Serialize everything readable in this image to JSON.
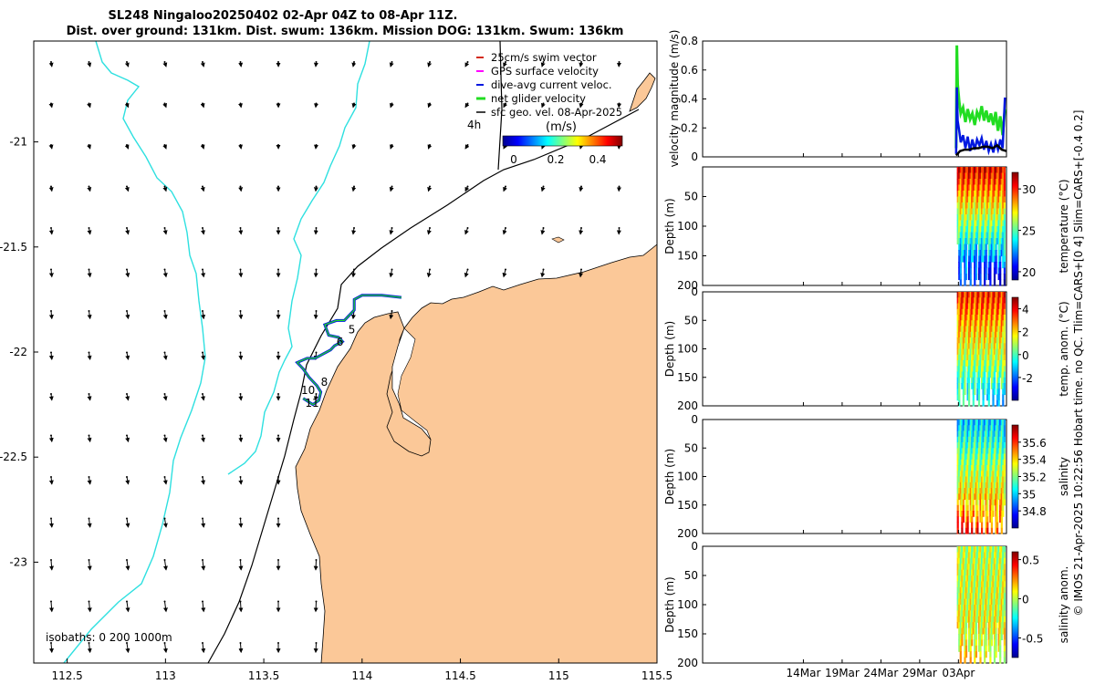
{
  "titles": {
    "line1": "SL248 Ningaloo20250402 02-Apr 04Z to 08-Apr 11Z.",
    "line2": "Dist. over ground: 131km. Dist. swum: 136km. Mission DOG: 131km. Swum: 136km"
  },
  "side_note": "© IMOS 21-Apr-2025 10:22:56 Hobart time. no QC. Tlim=CARS+[0 4] Slim=CARS+[-0.4 0.2]",
  "colors": {
    "land": "#fbc898",
    "drifter_track": "#2ee0e0",
    "coast": "#000000",
    "swim_vector": "#d42a1a",
    "gps_velocity": "#ff00ff",
    "dive_avg": "#0018e0",
    "net_glider": "#22dd22",
    "sfc_geo": "#000000"
  },
  "chart_data": [
    {
      "type": "map",
      "xlim": [
        112.33,
        115.5
      ],
      "ylim": [
        -23.48,
        -20.52
      ],
      "xticks": [
        "112.5",
        "113",
        "113.5",
        "114",
        "114.5",
        "115",
        "115.5"
      ],
      "xtick_values": [
        112.5,
        113,
        113.5,
        114,
        114.5,
        115,
        115.5
      ],
      "yticks": [
        "-21",
        "-21.5",
        "-22",
        "-22.5",
        "-23"
      ],
      "ytick_values": [
        -21,
        -21.5,
        -22,
        -22.5,
        -23
      ],
      "legend": [
        {
          "label": "25cm/s swim vector",
          "color": "#d42a1a"
        },
        {
          "label": "GPS surface velocity",
          "color": "#ff00ff"
        },
        {
          "label": "dive-avg current veloc.",
          "color": "#0018e0"
        },
        {
          "label": "net glider velocity",
          "color": "#22dd22"
        },
        {
          "label": "sfc geo. vel. 08-Apr-2025",
          "color": "#000000"
        }
      ],
      "legend_placement": "top-right",
      "colorbar": {
        "label": "(m/s)",
        "time_label": "4h",
        "ticks": [
          "0",
          "0.2",
          "0.4"
        ],
        "range": [
          0,
          0.5
        ]
      },
      "isobaths_label": "isobaths: 0   200  1000m",
      "day_labels": [
        {
          "text": "5",
          "lon": 113.93,
          "lat": -21.91
        },
        {
          "text": "6",
          "lon": 113.87,
          "lat": -21.97
        },
        {
          "text": "8",
          "lon": 113.79,
          "lat": -22.16
        },
        {
          "text": "10",
          "lon": 113.69,
          "lat": -22.2
        },
        {
          "text": "11",
          "lon": 113.71,
          "lat": -22.26
        }
      ],
      "glider_track": [
        [
          114.2,
          -21.74
        ],
        [
          114.1,
          -21.73
        ],
        [
          114.0,
          -21.73
        ],
        [
          113.96,
          -21.75
        ],
        [
          113.96,
          -21.8
        ],
        [
          113.93,
          -21.83
        ],
        [
          113.91,
          -21.85
        ],
        [
          113.87,
          -21.85
        ],
        [
          113.84,
          -21.86
        ],
        [
          113.81,
          -21.87
        ],
        [
          113.83,
          -21.92
        ],
        [
          113.88,
          -21.93
        ],
        [
          113.9,
          -21.95
        ],
        [
          113.86,
          -21.97
        ],
        [
          113.84,
          -21.99
        ],
        [
          113.8,
          -22.01
        ],
        [
          113.76,
          -22.03
        ],
        [
          113.72,
          -22.03
        ],
        [
          113.67,
          -22.05
        ],
        [
          113.7,
          -22.08
        ],
        [
          113.73,
          -22.12
        ],
        [
          113.77,
          -22.16
        ],
        [
          113.79,
          -22.19
        ],
        [
          113.78,
          -22.23
        ],
        [
          113.75,
          -22.25
        ],
        [
          113.7,
          -22.22
        ]
      ]
    },
    {
      "type": "line",
      "ylabel": "velocity magnitude (m/s)",
      "ylim": [
        0,
        0.8
      ],
      "yticks": [
        "0",
        "0.2",
        "0.4",
        "0.6",
        "0.8"
      ],
      "ytick_values": [
        0,
        0.2,
        0.4,
        0.6,
        0.8
      ],
      "x_dates": [
        "14Mar",
        "19Mar",
        "24Mar",
        "29Mar",
        "03Apr"
      ],
      "x_date_values": [
        13,
        18,
        23,
        28,
        33
      ],
      "xlim": [
        0,
        39.2
      ],
      "series": [
        {
          "color": "#22dd22",
          "x": [
            32.7,
            32.8,
            32.9,
            33.1,
            33.3,
            33.6,
            33.9,
            34.2,
            34.5,
            34.8,
            35.1,
            35.4,
            35.7,
            36.0,
            36.3,
            36.6,
            36.9,
            37.2,
            37.5,
            37.8,
            38.1,
            38.4,
            38.7,
            39.0
          ],
          "y": [
            0.06,
            0.77,
            0.5,
            0.38,
            0.3,
            0.34,
            0.24,
            0.33,
            0.26,
            0.3,
            0.22,
            0.31,
            0.27,
            0.35,
            0.25,
            0.32,
            0.24,
            0.3,
            0.22,
            0.31,
            0.18,
            0.28,
            0.15,
            0.33
          ]
        },
        {
          "color": "#0018e0",
          "x": [
            32.7,
            32.8,
            32.9,
            33.1,
            33.3,
            33.6,
            33.9,
            34.2,
            34.5,
            34.8,
            35.1,
            35.4,
            35.7,
            36.0,
            36.3,
            36.6,
            36.9,
            37.2,
            37.5,
            37.8,
            38.1,
            38.4,
            38.7,
            39.0
          ],
          "y": [
            0.02,
            0.48,
            0.25,
            0.18,
            0.1,
            0.15,
            0.06,
            0.14,
            0.04,
            0.12,
            0.05,
            0.12,
            0.08,
            0.13,
            0.05,
            0.11,
            0.04,
            0.09,
            0.03,
            0.1,
            0.05,
            0.12,
            0.06,
            0.41
          ]
        },
        {
          "color": "#000000",
          "x": [
            32.7,
            33.2,
            33.8,
            34.4,
            35.0,
            35.6,
            36.2,
            36.8,
            37.4,
            38.0,
            38.6,
            39.2
          ],
          "y": [
            0.01,
            0.04,
            0.05,
            0.05,
            0.06,
            0.06,
            0.07,
            0.07,
            0.06,
            0.08,
            0.05,
            0.04
          ]
        }
      ]
    },
    {
      "type": "heatmap",
      "ylabel": "Depth (m)",
      "cbar_label": "temperature (°C)",
      "ylim": [
        0,
        200
      ],
      "yticks": [
        "50",
        "100",
        "150",
        "200"
      ],
      "ytick_values": [
        50,
        100,
        150,
        200
      ],
      "clim": [
        19,
        32
      ],
      "cbar_ticks": [
        "20",
        "25",
        "30"
      ],
      "cbar_tick_values": [
        20,
        25,
        30
      ],
      "profile_range": [
        32.8,
        39.0
      ],
      "surface_value": 30.5,
      "bottom_value": 20.0
    },
    {
      "type": "heatmap",
      "ylabel": "Depth (m)",
      "cbar_label": "temp. anom. (°C)",
      "ylim": [
        0,
        200
      ],
      "yticks": [
        "0",
        "50",
        "100",
        "150",
        "200"
      ],
      "ytick_values": [
        0,
        50,
        100,
        150,
        200
      ],
      "clim": [
        -4,
        5
      ],
      "cbar_ticks": [
        "-2",
        "0",
        "2",
        "4"
      ],
      "cbar_tick_values": [
        -2,
        0,
        2,
        4
      ],
      "profile_range": [
        32.8,
        39.0
      ],
      "surface_value": 3.5,
      "bottom_value": -1.0
    },
    {
      "type": "heatmap",
      "ylabel": "Depth (m)",
      "cbar_label": "salinity",
      "ylim": [
        0,
        200
      ],
      "yticks": [
        "0",
        "50",
        "100",
        "150",
        "200"
      ],
      "ytick_values": [
        0,
        50,
        100,
        150,
        200
      ],
      "clim": [
        34.6,
        35.8
      ],
      "cbar_ticks": [
        "34.8",
        "35",
        "35.2",
        "35.4",
        "35.6"
      ],
      "cbar_tick_values": [
        34.8,
        35.0,
        35.2,
        35.4,
        35.6
      ],
      "profile_range": [
        32.8,
        39.0
      ],
      "surface_value": 35.0,
      "bottom_value": 35.6
    },
    {
      "type": "heatmap",
      "ylabel": "Depth (m)",
      "cbar_label": "salinity anom.",
      "ylim": [
        0,
        200
      ],
      "yticks": [
        "0",
        "50",
        "100",
        "150",
        "200"
      ],
      "ytick_values": [
        0,
        50,
        100,
        150,
        200
      ],
      "x_dates": [
        "14Mar",
        "19Mar",
        "24Mar",
        "29Mar",
        "03Apr"
      ],
      "clim": [
        -0.75,
        0.6
      ],
      "cbar_ticks": [
        "-0.5",
        "0",
        "0.5"
      ],
      "cbar_tick_values": [
        -0.5,
        0,
        0.5
      ],
      "profile_range": [
        32.8,
        39.0
      ],
      "surface_value": 0.0,
      "bottom_value": 0.1
    }
  ]
}
